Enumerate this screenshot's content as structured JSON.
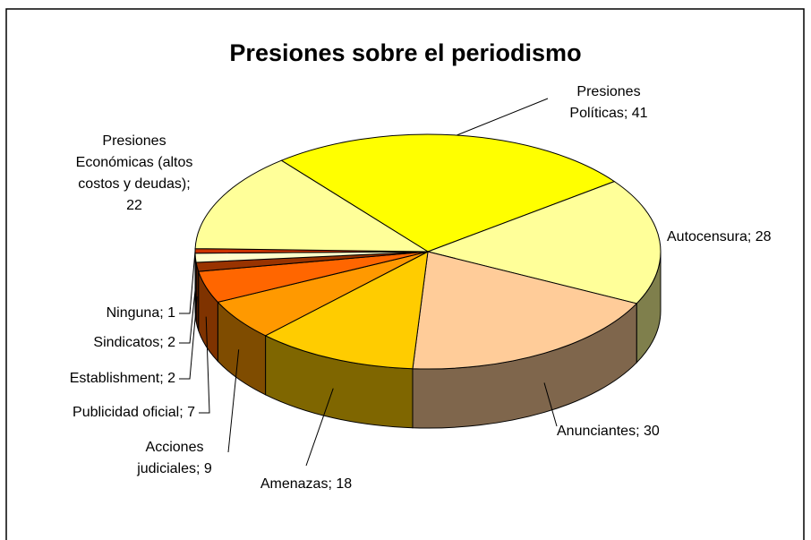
{
  "chart_data": {
    "type": "pie",
    "title": "Presiones sobre el periodismo",
    "values": [
      41,
      28,
      30,
      18,
      9,
      7,
      2,
      2,
      1,
      22
    ],
    "value_labels": [
      "Presiones\nPolíticas; 41",
      "Autocensura; 28",
      "Anunciantes; 30",
      "Amenazas; 18",
      "Acciones\njudiciales; 9",
      "Publicidad oficial; 7",
      "Establishment; 2",
      "Sindicatos; 2",
      "Ninguna; 1",
      "Presiones\nEconómicas (altos\ncostos y deudas);\n22"
    ],
    "colors": [
      "#ffff00",
      "#ffff99",
      "#ffcc99",
      "#ffcc00",
      "#ff9900",
      "#ff6600",
      "#993300",
      "#ffffcc",
      "#cc3300",
      "#ffff99"
    ]
  }
}
